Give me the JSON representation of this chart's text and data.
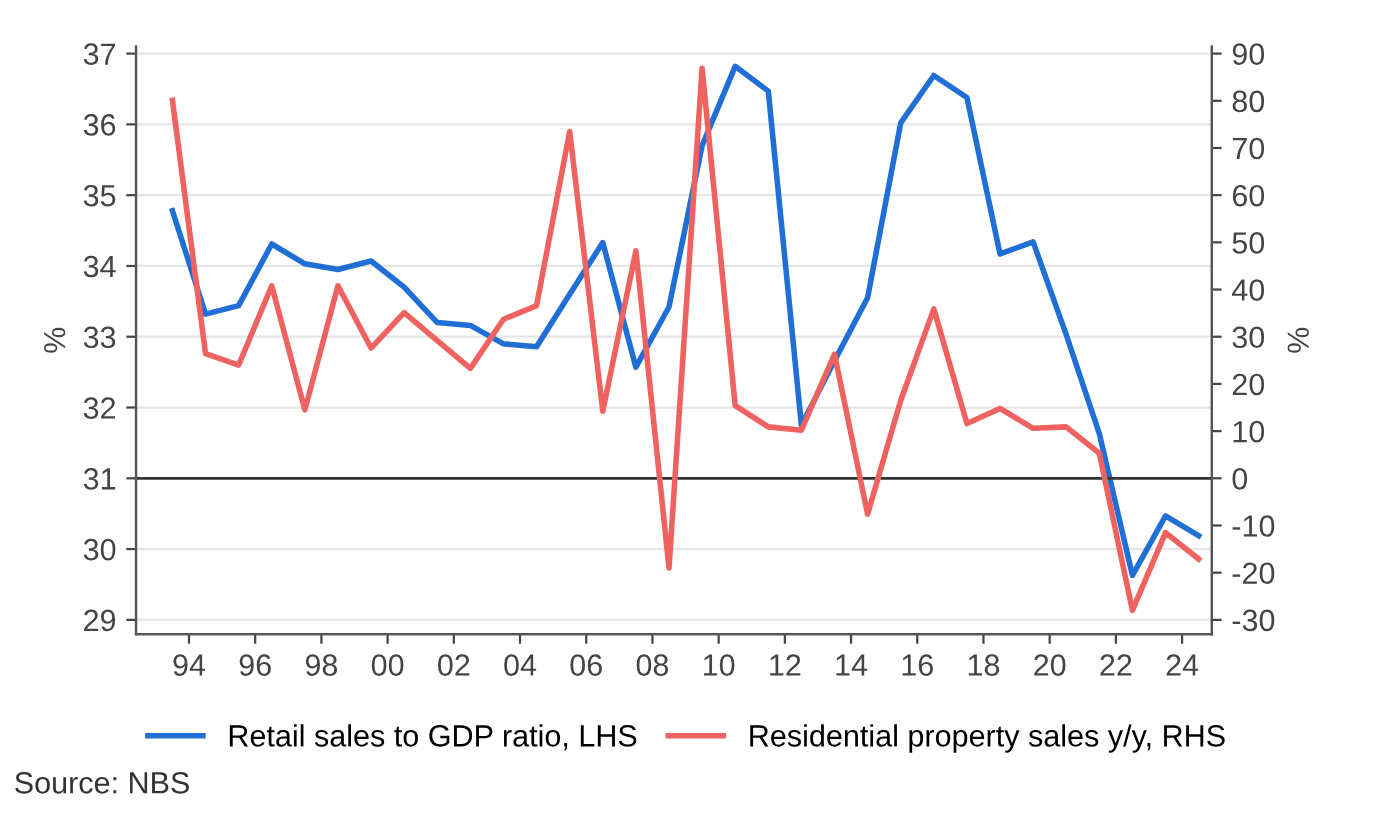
{
  "chart_data": {
    "type": "line",
    "xlabel": null,
    "ylabel": "%",
    "y2label": "%",
    "x": [
      1993.5,
      1994.5,
      1995.5,
      1996.5,
      1997.5,
      1998.5,
      1999.5,
      2000.5,
      2001.5,
      2002.5,
      2003.5,
      2004.5,
      2005.5,
      2006.5,
      2007.5,
      2008.5,
      2009.5,
      2010.5,
      2011.5,
      2012.5,
      2013.5,
      2014.5,
      2015.5,
      2016.5,
      2017.5,
      2018.5,
      2019.5,
      2020.5,
      2021.5,
      2022.5,
      2023.5,
      2024.5
    ],
    "series": [
      {
        "name": "Retail sales to GDP ratio, LHS",
        "color": "#1f6fd6",
        "axis": "y",
        "values": [
          34.78,
          33.32,
          33.44,
          34.31,
          34.03,
          33.95,
          34.07,
          33.7,
          33.2,
          33.16,
          32.9,
          32.86,
          33.6,
          34.33,
          32.57,
          33.42,
          35.7,
          36.82,
          36.47,
          31.75,
          32.66,
          33.55,
          36.02,
          36.69,
          36.38,
          34.17,
          34.34,
          33.03,
          31.63,
          29.63,
          30.47,
          30.19
        ]
      },
      {
        "name": "Residential property sales y/y, RHS",
        "color": "#f0625f",
        "axis": "y2",
        "values": [
          80.1,
          26.4,
          24.0,
          40.8,
          14.5,
          40.8,
          27.6,
          35.1,
          29.2,
          23.3,
          33.7,
          36.6,
          73.5,
          14.2,
          48.2,
          -19.0,
          86.9,
          15.4,
          10.9,
          10.2,
          26.3,
          -7.6,
          16.5,
          35.9,
          11.6,
          14.8,
          10.6,
          10.9,
          5.3,
          -28.0,
          -11.5,
          -17.1
        ]
      }
    ],
    "xlim": [
      1992.4,
      2024.9
    ],
    "xticks": [
      {
        "value": 1994,
        "label": "94"
      },
      {
        "value": 1996,
        "label": "96"
      },
      {
        "value": 1998,
        "label": "98"
      },
      {
        "value": 2000,
        "label": "00"
      },
      {
        "value": 2002,
        "label": "02"
      },
      {
        "value": 2004,
        "label": "04"
      },
      {
        "value": 2006,
        "label": "06"
      },
      {
        "value": 2008,
        "label": "08"
      },
      {
        "value": 2010,
        "label": "10"
      },
      {
        "value": 2012,
        "label": "12"
      },
      {
        "value": 2014,
        "label": "14"
      },
      {
        "value": 2016,
        "label": "16"
      },
      {
        "value": 2018,
        "label": "18"
      },
      {
        "value": 2020,
        "label": "20"
      },
      {
        "value": 2022,
        "label": "22"
      },
      {
        "value": 2024,
        "label": "24"
      }
    ],
    "ylim": [
      28.8,
      37.1
    ],
    "yticks": [
      29,
      30,
      31,
      32,
      33,
      34,
      35,
      36,
      37
    ],
    "y2lim": [
      -33,
      91.5
    ],
    "y2ticks": [
      -30,
      -20,
      -10,
      0,
      10,
      20,
      30,
      40,
      50,
      60,
      70,
      80,
      90
    ],
    "ref_lines": [
      {
        "axis": "y2",
        "value": 0,
        "color": "#333333"
      }
    ],
    "grid": "y",
    "legend": "bottom",
    "line_style": "solid",
    "marker": "none",
    "annotations": [
      "Source: NBS"
    ]
  }
}
